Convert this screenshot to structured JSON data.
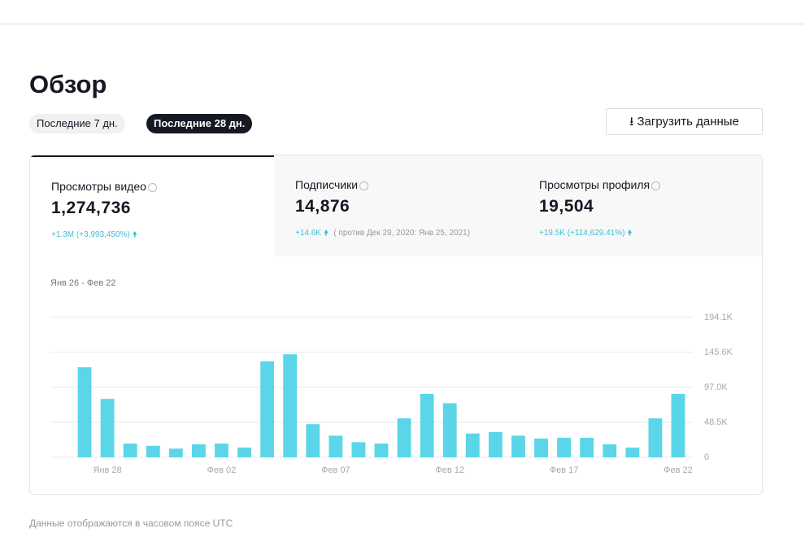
{
  "header": {
    "title": "Обзор"
  },
  "filters": [
    "Последние 7 дн.",
    "Последние 28 дн."
  ],
  "download_button": "Загрузить данные",
  "metrics": [
    {
      "label": "Просмотры видео",
      "value": "1,274,736",
      "change": "+1.3M (+3,993,450%)"
    },
    {
      "label": "Подписчики",
      "value": "14,876",
      "change": "+14.6K",
      "note": "( против Дек 29, 2020: Янв 25, 2021)"
    },
    {
      "label": "Просмотры профиля",
      "value": "19,504",
      "change": "+19.5K (+114,629.41%)"
    }
  ],
  "chart_data": {
    "type": "bar",
    "subtitle": "Янв 26 - Фев 22",
    "categories": [
      null,
      "Янв 28",
      null,
      null,
      null,
      null,
      "Фев 02",
      null,
      null,
      null,
      null,
      "Фев 07",
      null,
      null,
      null,
      null,
      "Фев 12",
      null,
      null,
      null,
      null,
      "Фев 17",
      null,
      null,
      null,
      null,
      "Фев 22"
    ],
    "values": [
      125000,
      81000,
      19000,
      16000,
      12000,
      18000,
      19000,
      13500,
      133000,
      143000,
      46000,
      30000,
      21000,
      19000,
      54000,
      88000,
      75000,
      33000,
      35000,
      30000,
      26000,
      27000,
      27000,
      18000,
      13500,
      54000,
      88000
    ],
    "color": "#5ad6e8",
    "ylim": [
      0,
      194100
    ],
    "yticks": [
      0,
      {
        "value": 48500,
        "label": "48.5K"
      },
      {
        "value": 97000,
        "label": "97.0K"
      },
      {
        "value": 145600,
        "label": "145.6K"
      },
      {
        "value": 194100,
        "label": "194.1K"
      }
    ],
    "grid": true
  },
  "footer": "Данные отображаются в часовом поясе UTC"
}
